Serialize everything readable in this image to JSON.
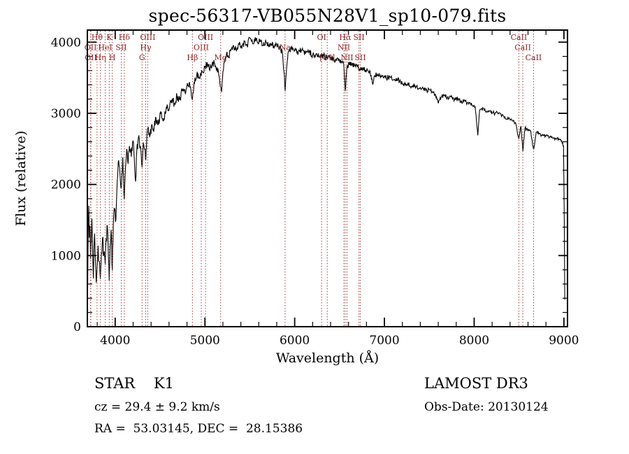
{
  "title": "spec-56317-VB055N28V1_sp10-079.fits",
  "footer": {
    "classification": "STAR    K1",
    "survey": "LAMOST DR3",
    "cz": "cz = 29.4 ± 9.2 km/s",
    "obs_date": "Obs-Date: 20130124",
    "coords": "RA =  53.03145, DEC =  28.15386"
  },
  "chart_data": {
    "type": "line",
    "title": "spec-56317-VB055N28V1_sp10-079.fits",
    "xlabel": "Wavelength (Å)",
    "ylabel": "Flux (relative)",
    "xlim": [
      3690,
      9040
    ],
    "ylim": [
      0,
      4170
    ],
    "x_ticks": [
      4000,
      5000,
      6000,
      7000,
      8000,
      9000
    ],
    "y_ticks": [
      0,
      1000,
      2000,
      3000,
      4000
    ],
    "x_minor_step": 200,
    "y_minor_step": 200,
    "grid": false,
    "spectrum_color": "#000000",
    "marker_color": "#a03c3c",
    "marker_label_color": "#8b2424",
    "noise_seed": 56317,
    "noise_profile": [
      [
        3700,
        115
      ],
      [
        4300,
        80
      ],
      [
        4900,
        55
      ],
      [
        5500,
        45
      ],
      [
        6500,
        40
      ],
      [
        7500,
        32
      ],
      [
        8500,
        26
      ],
      [
        9000,
        22
      ]
    ],
    "spectral_lines": [
      {
        "label": "OII",
        "wavelength": 3726,
        "row": 2
      },
      {
        "label": "OII",
        "wavelength": 3729,
        "row": 3
      },
      {
        "label": "Hθ",
        "wavelength": 3798,
        "row": 1
      },
      {
        "label": "Hη",
        "wavelength": 3835,
        "row": 3
      },
      {
        "label": "HeI",
        "wavelength": 3889,
        "row": 2
      },
      {
        "label": "K",
        "wavelength": 3934,
        "row": 1
      },
      {
        "label": "H",
        "wavelength": 3968,
        "row": 3
      },
      {
        "label": "SII",
        "wavelength": 4068,
        "row": 2
      },
      {
        "label": "Hδ",
        "wavelength": 4102,
        "row": 1
      },
      {
        "label": "G",
        "wavelength": 4300,
        "row": 3
      },
      {
        "label": "Hγ",
        "wavelength": 4340,
        "row": 2
      },
      {
        "label": "OIII",
        "wavelength": 4363,
        "row": 1
      },
      {
        "label": "Hβ",
        "wavelength": 4861,
        "row": 3
      },
      {
        "label": "OIII",
        "wavelength": 4959,
        "row": 2
      },
      {
        "label": "OIII",
        "wavelength": 5007,
        "row": 1
      },
      {
        "label": "Mg",
        "wavelength": 5175,
        "row": 3
      },
      {
        "label": "Na",
        "wavelength": 5893,
        "row": 2
      },
      {
        "label": "OI",
        "wavelength": 6300,
        "row": 1
      },
      {
        "label": "[OI]",
        "wavelength": 6363,
        "row": 3
      },
      {
        "label": "NII",
        "wavelength": 6548,
        "row": 2
      },
      {
        "label": "Hα",
        "wavelength": 6563,
        "row": 1
      },
      {
        "label": "NII",
        "wavelength": 6583,
        "row": 3
      },
      {
        "label": "SII",
        "wavelength": 6716,
        "row": 1
      },
      {
        "label": "SII",
        "wavelength": 6731,
        "row": 3
      },
      {
        "label": "CaII",
        "wavelength": 8498,
        "row": 1
      },
      {
        "label": "CaII",
        "wavelength": 8542,
        "row": 2
      },
      {
        "label": "CaII",
        "wavelength": 8662,
        "row": 3
      }
    ],
    "spectrum": [
      [
        3691,
        80
      ],
      [
        3696,
        950
      ],
      [
        3701,
        1450
      ],
      [
        3706,
        1700
      ],
      [
        3712,
        1250
      ],
      [
        3719,
        1420
      ],
      [
        3726,
        950
      ],
      [
        3733,
        1230
      ],
      [
        3741,
        1520
      ],
      [
        3749,
        1030
      ],
      [
        3757,
        680
      ],
      [
        3764,
        1120
      ],
      [
        3771,
        1310
      ],
      [
        3779,
        960
      ],
      [
        3789,
        620
      ],
      [
        3799,
        830
      ],
      [
        3810,
        1140
      ],
      [
        3821,
        920
      ],
      [
        3835,
        670
      ],
      [
        3847,
        1040
      ],
      [
        3859,
        1240
      ],
      [
        3873,
        1010
      ],
      [
        3889,
        870
      ],
      [
        3900,
        1240
      ],
      [
        3913,
        1420
      ],
      [
        3924,
        1010
      ],
      [
        3934,
        640
      ],
      [
        3944,
        1140
      ],
      [
        3955,
        1360
      ],
      [
        3968,
        790
      ],
      [
        3980,
        1450
      ],
      [
        3994,
        1640
      ],
      [
        4008,
        1490
      ],
      [
        4023,
        2060
      ],
      [
        4039,
        2340
      ],
      [
        4054,
        2140
      ],
      [
        4068,
        1940
      ],
      [
        4084,
        2380
      ],
      [
        4102,
        1790
      ],
      [
        4115,
        2240
      ],
      [
        4129,
        2500
      ],
      [
        4144,
        2290
      ],
      [
        4159,
        2540
      ],
      [
        4179,
        2390
      ],
      [
        4199,
        2610
      ],
      [
        4214,
        2340
      ],
      [
        4227,
        2040
      ],
      [
        4241,
        2490
      ],
      [
        4259,
        2660
      ],
      [
        4279,
        2540
      ],
      [
        4300,
        2240
      ],
      [
        4314,
        2590
      ],
      [
        4329,
        2490
      ],
      [
        4341,
        2340
      ],
      [
        4354,
        2700
      ],
      [
        4369,
        2800
      ],
      [
        4389,
        2690
      ],
      [
        4409,
        2840
      ],
      [
        4429,
        2740
      ],
      [
        4454,
        2940
      ],
      [
        4479,
        2840
      ],
      [
        4509,
        2990
      ],
      [
        4539,
        2930
      ],
      [
        4569,
        3090
      ],
      [
        4599,
        3040
      ],
      [
        4629,
        3190
      ],
      [
        4659,
        3140
      ],
      [
        4689,
        3240
      ],
      [
        4719,
        3190
      ],
      [
        4749,
        3340
      ],
      [
        4779,
        3290
      ],
      [
        4809,
        3390
      ],
      [
        4839,
        3370
      ],
      [
        4861,
        3190
      ],
      [
        4879,
        3440
      ],
      [
        4909,
        3540
      ],
      [
        4939,
        3490
      ],
      [
        4969,
        3590
      ],
      [
        4999,
        3640
      ],
      [
        5029,
        3690
      ],
      [
        5059,
        3640
      ],
      [
        5089,
        3710
      ],
      [
        5119,
        3670
      ],
      [
        5149,
        3590
      ],
      [
        5172,
        3370
      ],
      [
        5186,
        3300
      ],
      [
        5201,
        3590
      ],
      [
        5221,
        3740
      ],
      [
        5241,
        3840
      ],
      [
        5261,
        3790
      ],
      [
        5291,
        3890
      ],
      [
        5321,
        3950
      ],
      [
        5351,
        3880
      ],
      [
        5381,
        3970
      ],
      [
        5411,
        3910
      ],
      [
        5441,
        4010
      ],
      [
        5471,
        3950
      ],
      [
        5501,
        4060
      ],
      [
        5531,
        3980
      ],
      [
        5561,
        4070
      ],
      [
        5591,
        3990
      ],
      [
        5621,
        4030
      ],
      [
        5651,
        3960
      ],
      [
        5681,
        4000
      ],
      [
        5711,
        3940
      ],
      [
        5741,
        3980
      ],
      [
        5771,
        3920
      ],
      [
        5801,
        3960
      ],
      [
        5831,
        3910
      ],
      [
        5861,
        3870
      ],
      [
        5881,
        3590
      ],
      [
        5894,
        3310
      ],
      [
        5911,
        3650
      ],
      [
        5931,
        3870
      ],
      [
        5961,
        3910
      ],
      [
        6001,
        3890
      ],
      [
        6041,
        3860
      ],
      [
        6081,
        3890
      ],
      [
        6121,
        3840
      ],
      [
        6161,
        3860
      ],
      [
        6201,
        3820
      ],
      [
        6241,
        3840
      ],
      [
        6281,
        3790
      ],
      [
        6321,
        3810
      ],
      [
        6361,
        3770
      ],
      [
        6401,
        3790
      ],
      [
        6441,
        3750
      ],
      [
        6481,
        3770
      ],
      [
        6521,
        3730
      ],
      [
        6546,
        3690
      ],
      [
        6563,
        3310
      ],
      [
        6581,
        3640
      ],
      [
        6611,
        3710
      ],
      [
        6641,
        3680
      ],
      [
        6671,
        3690
      ],
      [
        6701,
        3650
      ],
      [
        6731,
        3630
      ],
      [
        6761,
        3640
      ],
      [
        6791,
        3610
      ],
      [
        6821,
        3590
      ],
      [
        6851,
        3540
      ],
      [
        6871,
        3410
      ],
      [
        6891,
        3530
      ],
      [
        6921,
        3550
      ],
      [
        6951,
        3520
      ],
      [
        6981,
        3530
      ],
      [
        7021,
        3500
      ],
      [
        7061,
        3510
      ],
      [
        7101,
        3470
      ],
      [
        7141,
        3480
      ],
      [
        7181,
        3440
      ],
      [
        7221,
        3410
      ],
      [
        7261,
        3420
      ],
      [
        7301,
        3380
      ],
      [
        7341,
        3390
      ],
      [
        7381,
        3350
      ],
      [
        7421,
        3360
      ],
      [
        7461,
        3320
      ],
      [
        7501,
        3330
      ],
      [
        7541,
        3290
      ],
      [
        7581,
        3230
      ],
      [
        7601,
        3140
      ],
      [
        7621,
        3220
      ],
      [
        7661,
        3250
      ],
      [
        7701,
        3220
      ],
      [
        7741,
        3230
      ],
      [
        7781,
        3190
      ],
      [
        7821,
        3200
      ],
      [
        7861,
        3160
      ],
      [
        7901,
        3170
      ],
      [
        7941,
        3130
      ],
      [
        7981,
        3110
      ],
      [
        8011,
        3090
      ],
      [
        8041,
        2690
      ],
      [
        8061,
        3050
      ],
      [
        8101,
        3070
      ],
      [
        8141,
        3030
      ],
      [
        8181,
        3040
      ],
      [
        8221,
        3000
      ],
      [
        8261,
        3010
      ],
      [
        8301,
        2970
      ],
      [
        8341,
        2950
      ],
      [
        8381,
        2920
      ],
      [
        8421,
        2900
      ],
      [
        8461,
        2870
      ],
      [
        8498,
        2640
      ],
      [
        8521,
        2820
      ],
      [
        8542,
        2470
      ],
      [
        8566,
        2790
      ],
      [
        8601,
        2770
      ],
      [
        8631,
        2750
      ],
      [
        8662,
        2490
      ],
      [
        8691,
        2730
      ],
      [
        8721,
        2710
      ],
      [
        8761,
        2690
      ],
      [
        8801,
        2680
      ],
      [
        8841,
        2670
      ],
      [
        8881,
        2650
      ],
      [
        8921,
        2640
      ],
      [
        8951,
        2630
      ],
      [
        8976,
        2610
      ],
      [
        8996,
        2540
      ],
      [
        9004,
        1500
      ],
      [
        9010,
        380
      ]
    ]
  }
}
